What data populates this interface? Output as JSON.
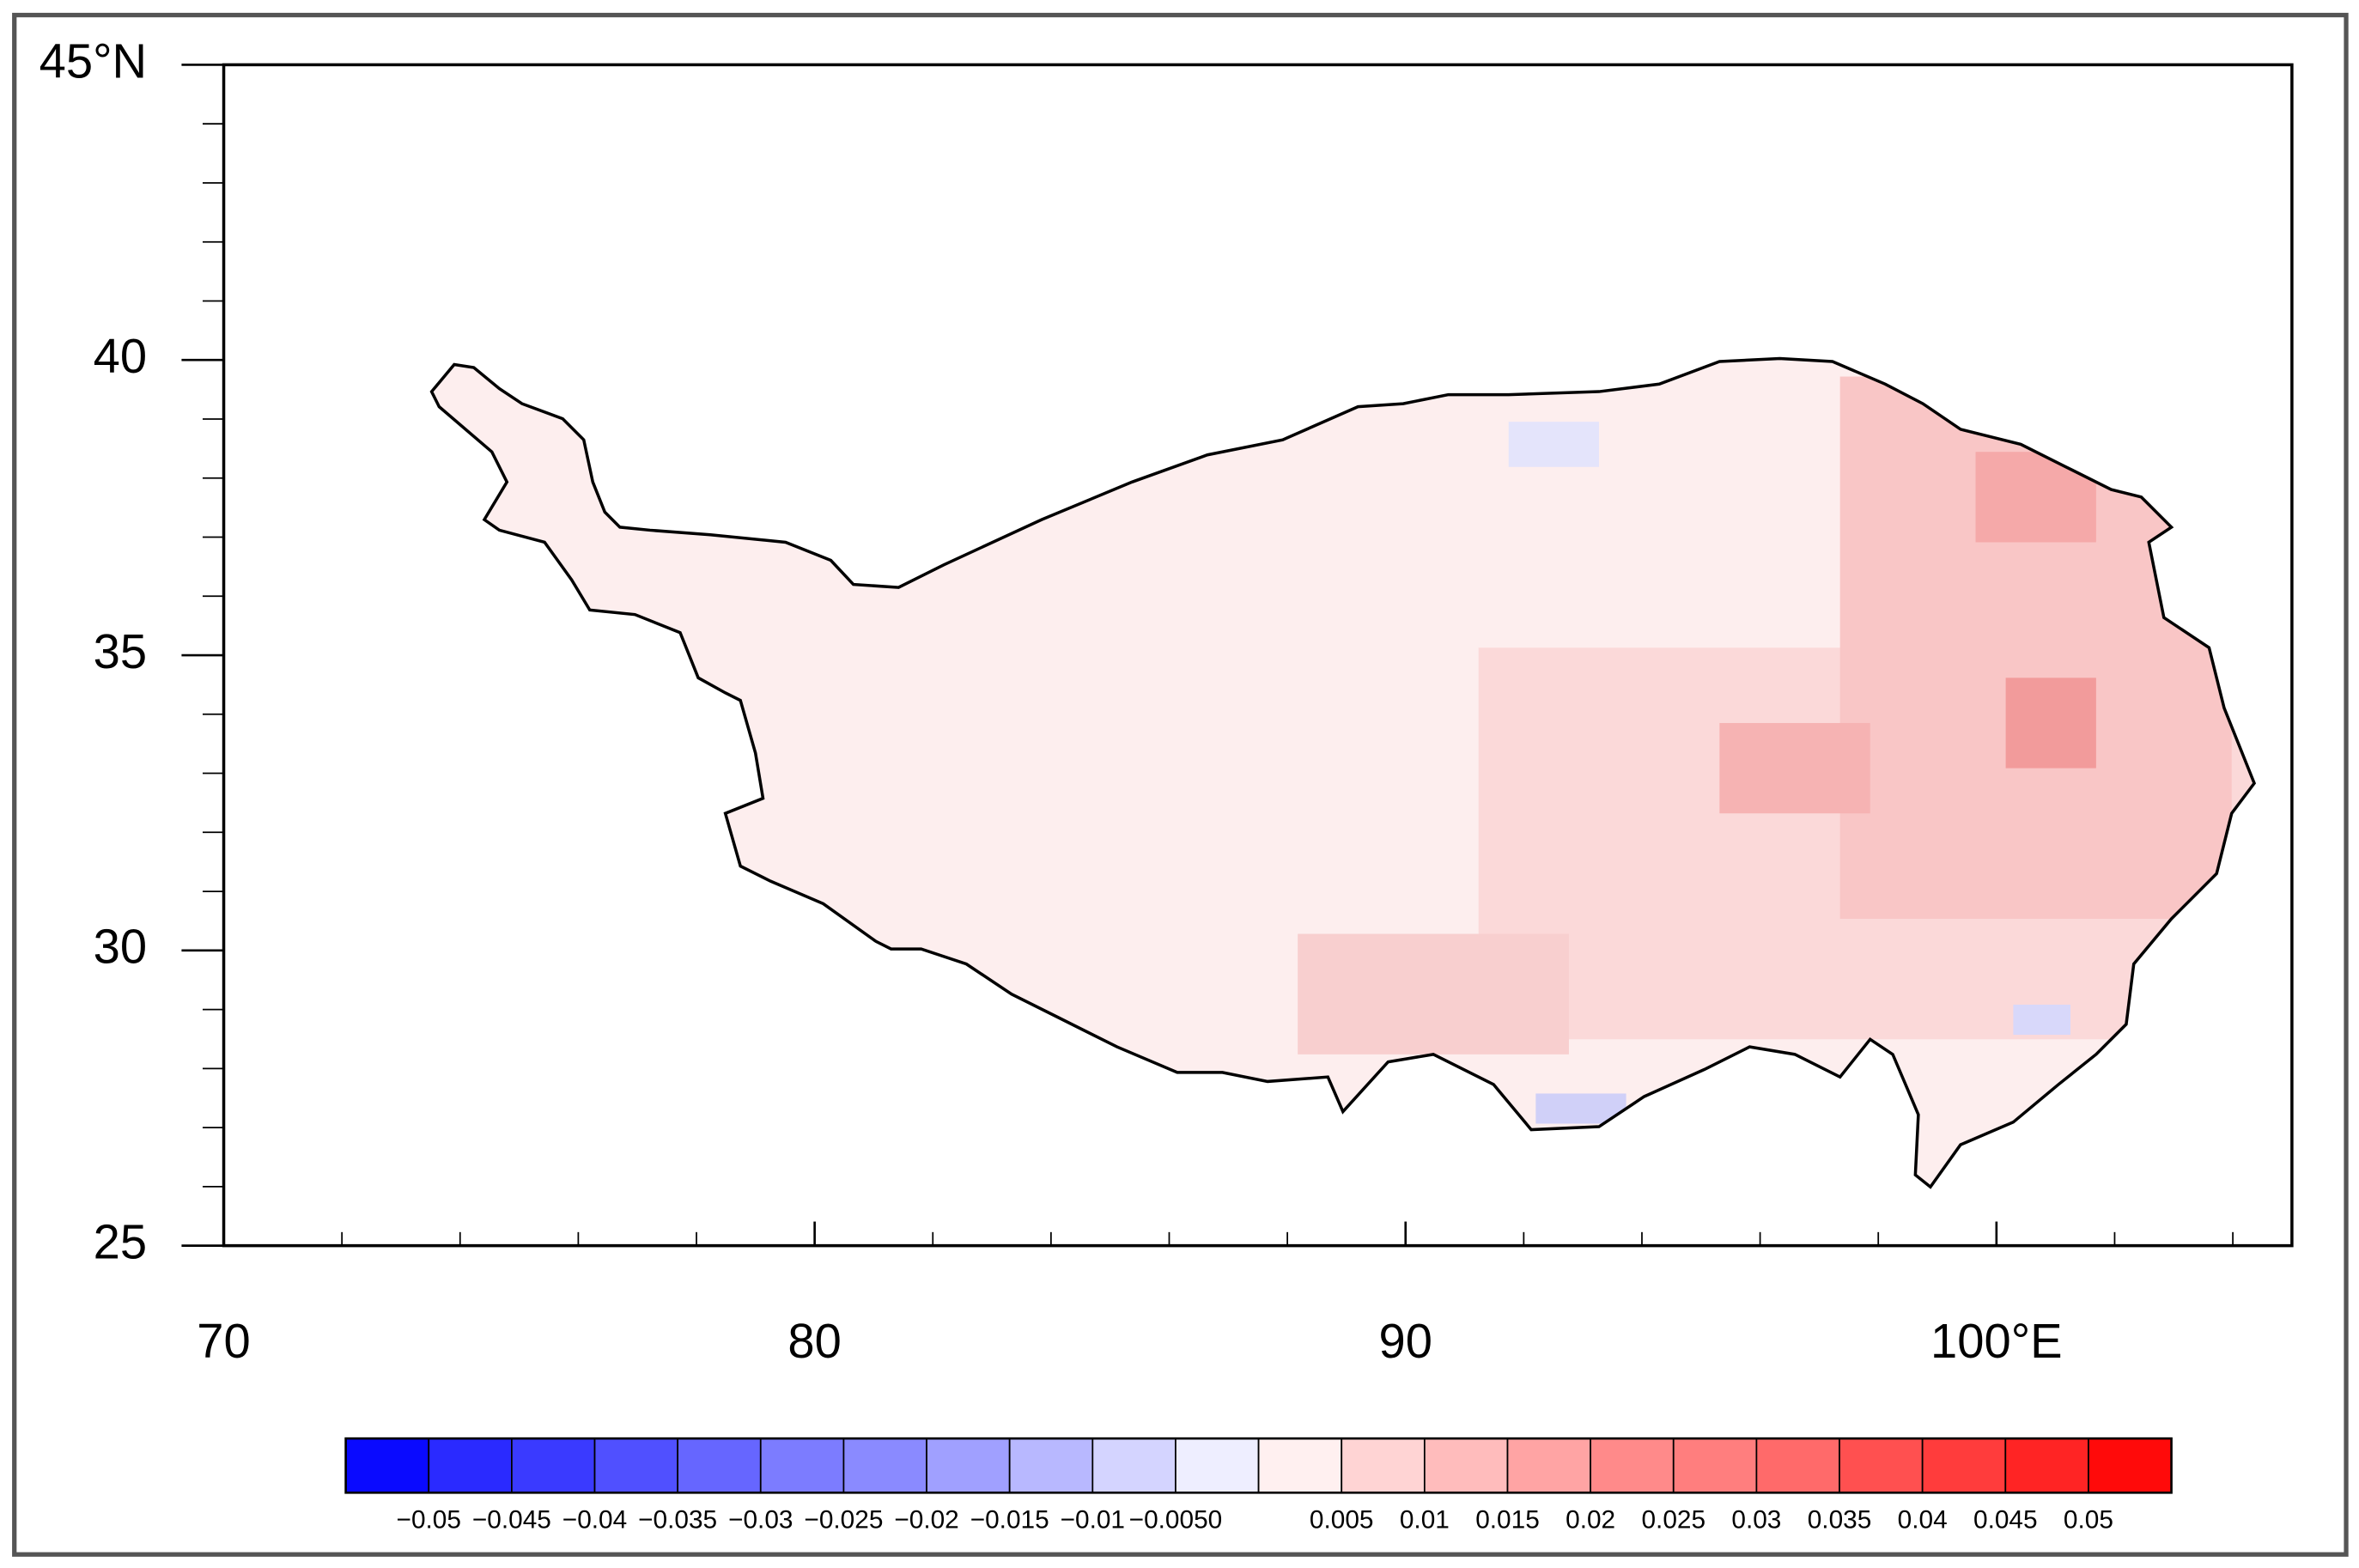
{
  "map": {
    "lon_axis": {
      "range": [
        70,
        105
      ],
      "ticks": [
        70,
        80,
        90,
        {
          "value": 100,
          "label": "100°E"
        }
      ],
      "minor_ticks": [
        72,
        74,
        76,
        78,
        82,
        84,
        86,
        88,
        92,
        94,
        96,
        98,
        102,
        104
      ]
    },
    "lat_axis": {
      "range": [
        25,
        45
      ],
      "ticks": [
        25,
        30,
        35,
        40,
        {
          "value": 45,
          "label": "45°N"
        }
      ],
      "minor_ticks": [
        26,
        27,
        28,
        29,
        31,
        32,
        33,
        34,
        36,
        37,
        38,
        39,
        41,
        42,
        43,
        44
      ]
    },
    "colorbar": {
      "range": [
        -0.055,
        0.055
      ],
      "ticks": [
        {
          "value": -0.05,
          "label": "−0.05"
        },
        {
          "value": -0.045,
          "label": "−0.045"
        },
        {
          "value": -0.04,
          "label": "−0.04"
        },
        {
          "value": -0.035,
          "label": "−0.035"
        },
        {
          "value": -0.03,
          "label": "−0.03"
        },
        {
          "value": -0.025,
          "label": "−0.025"
        },
        {
          "value": -0.02,
          "label": "−0.02"
        },
        {
          "value": -0.015,
          "label": "−0.015"
        },
        {
          "value": -0.01,
          "label": "−0.01"
        },
        {
          "value": -0.005,
          "label": "−0.0050"
        },
        0.005,
        0.01,
        0.015,
        0.02,
        0.025,
        0.03,
        0.035,
        0.04,
        0.045,
        0.05
      ],
      "colors": [
        "#0a0aff",
        "#2a2aff",
        "#3a3aff",
        "#5050ff",
        "#6666ff",
        "#7c7cff",
        "#8a8aff",
        "#a0a0ff",
        "#b8b8ff",
        "#d4d4ff",
        "#eeeeff",
        "#fff0f0",
        "#ffd4d4",
        "#ffbcbc",
        "#ffa4a4",
        "#ff8a8a",
        "#ff7e7e",
        "#ff6a6a",
        "#ff5050",
        "#ff3c3c",
        "#ff2424",
        "#ff0a0a"
      ]
    }
  }
}
